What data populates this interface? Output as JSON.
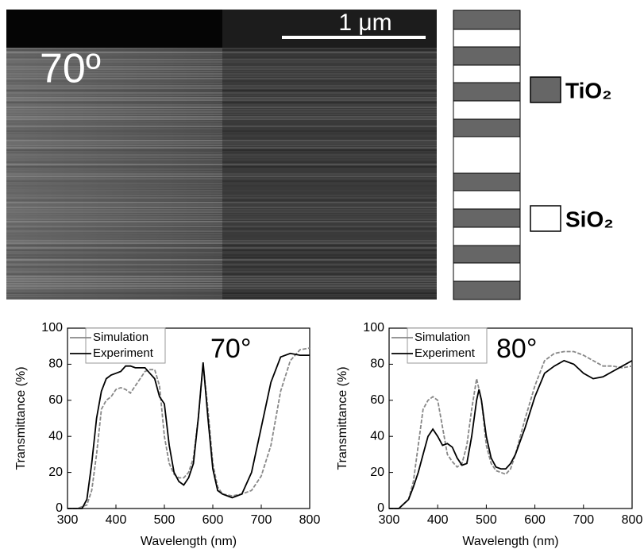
{
  "image": {
    "angle_label": "70º",
    "scale_label": "1 μm"
  },
  "layer_legend": [
    "TiO₂",
    "SiO₂"
  ],
  "chart_data": [
    {
      "type": "line",
      "annotation": "70°",
      "x_label": "Wavelength (nm)",
      "y_label": "Transmittance (%)",
      "xlim": [
        300,
        800
      ],
      "ylim": [
        0,
        100
      ],
      "xticks": [
        300,
        400,
        500,
        600,
        700,
        800
      ],
      "yticks": [
        0,
        20,
        40,
        60,
        80,
        100
      ],
      "series": [
        {
          "name": "Simulation",
          "color": "#888888",
          "dashed": true,
          "x": [
            300,
            320,
            340,
            350,
            360,
            370,
            380,
            390,
            400,
            410,
            420,
            430,
            440,
            450,
            460,
            470,
            480,
            490,
            500,
            510,
            520,
            530,
            540,
            550,
            560,
            570,
            580,
            590,
            600,
            610,
            620,
            640,
            660,
            680,
            700,
            720,
            740,
            760,
            780,
            800
          ],
          "values": [
            0,
            0,
            2,
            10,
            30,
            55,
            60,
            62,
            66,
            67,
            66,
            64,
            68,
            72,
            76,
            77,
            77,
            68,
            40,
            25,
            19,
            17,
            17,
            20,
            28,
            50,
            80,
            55,
            25,
            12,
            8,
            7,
            8,
            10,
            18,
            35,
            65,
            82,
            88,
            89
          ]
        },
        {
          "name": "Experiment",
          "color": "#000000",
          "dashed": false,
          "x": [
            300,
            320,
            330,
            340,
            350,
            360,
            370,
            380,
            390,
            400,
            410,
            420,
            430,
            440,
            450,
            460,
            470,
            480,
            490,
            500,
            510,
            520,
            530,
            540,
            550,
            560,
            570,
            580,
            590,
            600,
            610,
            620,
            640,
            660,
            680,
            700,
            720,
            740,
            760,
            780,
            800
          ],
          "values": [
            0,
            0,
            0,
            5,
            25,
            50,
            65,
            72,
            74,
            75,
            76,
            79,
            79,
            78,
            78,
            78,
            75,
            72,
            62,
            58,
            35,
            20,
            15,
            13,
            17,
            25,
            50,
            81,
            50,
            22,
            10,
            8,
            6,
            8,
            20,
            45,
            70,
            84,
            86,
            85,
            85
          ]
        }
      ]
    },
    {
      "type": "line",
      "annotation": "80°",
      "x_label": "Wavelength (nm)",
      "y_label": "Transmittance (%)",
      "xlim": [
        300,
        800
      ],
      "ylim": [
        0,
        100
      ],
      "xticks": [
        300,
        400,
        500,
        600,
        700,
        800
      ],
      "yticks": [
        0,
        20,
        40,
        60,
        80,
        100
      ],
      "series": [
        {
          "name": "Simulation",
          "color": "#888888",
          "dashed": true,
          "x": [
            300,
            320,
            340,
            350,
            360,
            370,
            380,
            390,
            400,
            410,
            420,
            430,
            440,
            450,
            460,
            470,
            480,
            490,
            500,
            510,
            520,
            530,
            540,
            550,
            560,
            570,
            580,
            600,
            620,
            640,
            660,
            680,
            700,
            720,
            740,
            760,
            780,
            800
          ],
          "values": [
            0,
            0,
            5,
            15,
            35,
            55,
            60,
            62,
            60,
            45,
            30,
            26,
            23,
            25,
            35,
            55,
            72,
            60,
            35,
            25,
            21,
            20,
            19,
            22,
            30,
            40,
            50,
            68,
            82,
            86,
            87,
            87,
            85,
            82,
            79,
            79,
            78,
            79
          ]
        },
        {
          "name": "Experiment",
          "color": "#000000",
          "dashed": false,
          "x": [
            300,
            320,
            340,
            350,
            360,
            370,
            380,
            390,
            400,
            410,
            420,
            430,
            440,
            450,
            460,
            470,
            480,
            485,
            490,
            500,
            510,
            520,
            530,
            540,
            550,
            560,
            580,
            600,
            620,
            640,
            660,
            680,
            700,
            720,
            740,
            760,
            780,
            800
          ],
          "values": [
            0,
            0,
            5,
            12,
            20,
            30,
            40,
            44,
            40,
            35,
            36,
            34,
            28,
            24,
            25,
            40,
            60,
            66,
            60,
            40,
            28,
            23,
            22,
            22,
            25,
            30,
            45,
            62,
            75,
            79,
            82,
            80,
            75,
            72,
            73,
            76,
            79,
            82
          ]
        }
      ]
    }
  ]
}
